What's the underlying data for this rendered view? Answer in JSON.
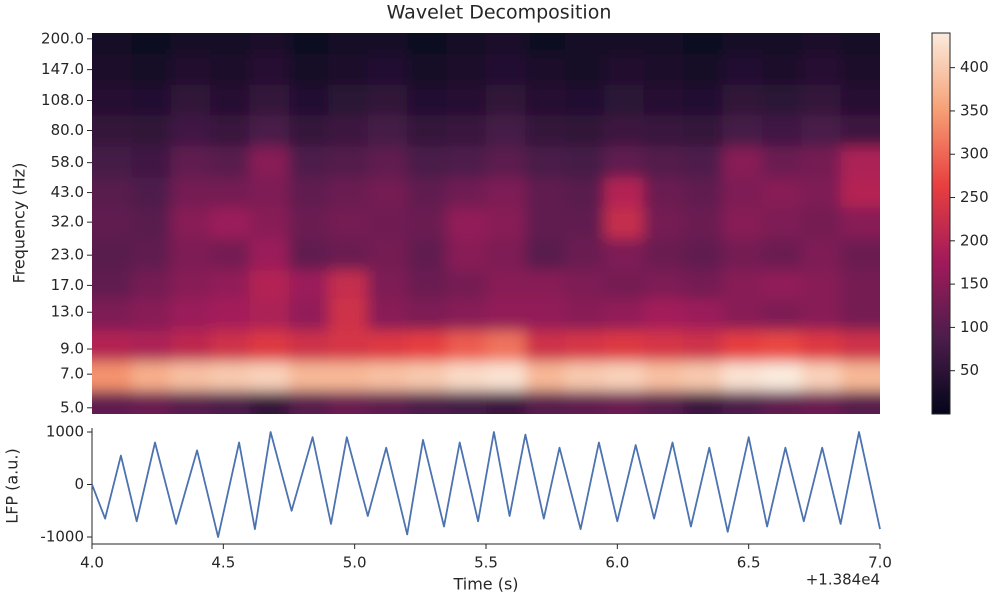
{
  "chart_data": [
    {
      "type": "heatmap",
      "title": "Wavelet Decomposition",
      "ylabel": "Frequency (Hz)",
      "colormap": "rocket",
      "ylog": true,
      "ylim": [
        4.7,
        212
      ],
      "yticks": [
        {
          "value": 200,
          "label": "200.0"
        },
        {
          "value": 147,
          "label": "147.0"
        },
        {
          "value": 108,
          "label": "108.0"
        },
        {
          "value": 80,
          "label": "80.0"
        },
        {
          "value": 58,
          "label": "58.0"
        },
        {
          "value": 43,
          "label": "43.0"
        },
        {
          "value": 32,
          "label": "32.0"
        },
        {
          "value": 23,
          "label": "23.0"
        },
        {
          "value": 17,
          "label": "17.0"
        },
        {
          "value": 13,
          "label": "13.0"
        },
        {
          "value": 9,
          "label": "9.0"
        },
        {
          "value": 7,
          "label": "7.0"
        },
        {
          "value": 5,
          "label": "5.0"
        }
      ],
      "x_edges": [
        4.0,
        4.15,
        4.3,
        4.45,
        4.6,
        4.75,
        4.9,
        5.05,
        5.2,
        5.35,
        5.5,
        5.65,
        5.8,
        5.95,
        6.1,
        6.25,
        6.4,
        6.55,
        6.7,
        6.85,
        7.0
      ],
      "y": [
        200,
        147,
        108,
        80,
        58,
        43,
        32,
        23,
        17,
        13,
        9,
        7,
        5
      ],
      "z": [
        [
          20,
          15,
          25,
          20,
          30,
          15,
          20,
          25,
          15,
          20,
          30,
          15,
          20,
          25,
          20,
          15,
          25,
          20,
          30,
          20
        ],
        [
          30,
          25,
          35,
          30,
          45,
          25,
          30,
          40,
          25,
          30,
          40,
          30,
          25,
          35,
          30,
          25,
          40,
          30,
          45,
          30
        ],
        [
          45,
          40,
          55,
          45,
          60,
          40,
          50,
          55,
          40,
          45,
          55,
          45,
          40,
          50,
          45,
          40,
          55,
          50,
          60,
          45
        ],
        [
          60,
          55,
          75,
          65,
          85,
          60,
          70,
          80,
          60,
          65,
          80,
          60,
          55,
          70,
          65,
          60,
          80,
          75,
          85,
          70
        ],
        [
          80,
          75,
          110,
          100,
          150,
          90,
          95,
          110,
          85,
          90,
          105,
          85,
          80,
          110,
          95,
          90,
          150,
          120,
          130,
          190
        ],
        [
          100,
          90,
          130,
          130,
          140,
          110,
          120,
          130,
          110,
          125,
          140,
          110,
          100,
          200,
          120,
          110,
          140,
          150,
          140,
          200
        ],
        [
          110,
          100,
          150,
          170,
          150,
          120,
          130,
          125,
          120,
          160,
          150,
          110,
          110,
          220,
          130,
          120,
          150,
          140,
          130,
          150
        ],
        [
          100,
          110,
          140,
          130,
          170,
          110,
          120,
          130,
          110,
          150,
          140,
          100,
          120,
          140,
          120,
          110,
          130,
          120,
          140,
          120
        ],
        [
          110,
          130,
          150,
          160,
          200,
          170,
          220,
          140,
          120,
          130,
          150,
          150,
          140,
          130,
          140,
          130,
          150,
          160,
          150,
          130
        ],
        [
          140,
          150,
          170,
          180,
          190,
          160,
          230,
          150,
          140,
          150,
          160,
          160,
          150,
          160,
          180,
          170,
          150,
          140,
          150,
          130
        ],
        [
          200,
          190,
          210,
          230,
          250,
          230,
          240,
          250,
          260,
          290,
          310,
          230,
          240,
          250,
          240,
          230,
          260,
          270,
          250,
          230
        ],
        [
          340,
          370,
          390,
          400,
          410,
          380,
          380,
          390,
          400,
          420,
          430,
          380,
          400,
          410,
          390,
          400,
          430,
          440,
          410,
          380
        ],
        [
          110,
          120,
          100,
          90,
          60,
          100,
          120,
          110,
          90,
          80,
          70,
          100,
          110,
          120,
          100,
          70,
          90,
          110,
          120,
          100
        ]
      ],
      "clim": [
        0,
        440
      ],
      "cticks": [
        50,
        100,
        150,
        200,
        250,
        300,
        350,
        400
      ]
    },
    {
      "type": "line",
      "xlabel": "Time (s)",
      "ylabel": "LFP (a.u.)",
      "x_offset_label": "+1.384e4",
      "xlim": [
        4.0,
        7.0
      ],
      "xticks": [
        {
          "value": 4.0,
          "label": "4.0"
        },
        {
          "value": 4.5,
          "label": "4.5"
        },
        {
          "value": 5.0,
          "label": "5.0"
        },
        {
          "value": 5.5,
          "label": "5.5"
        },
        {
          "value": 6.0,
          "label": "6.0"
        },
        {
          "value": 6.5,
          "label": "6.5"
        },
        {
          "value": 7.0,
          "label": "7.0"
        }
      ],
      "ylim": [
        -1133,
        1076
      ],
      "yticks": [
        -1000,
        0,
        1000
      ],
      "x": [
        4.0,
        4.05,
        4.11,
        4.17,
        4.24,
        4.32,
        4.4,
        4.48,
        4.56,
        4.62,
        4.68,
        4.76,
        4.84,
        4.91,
        4.97,
        5.05,
        5.12,
        5.2,
        5.26,
        5.34,
        5.4,
        5.47,
        5.53,
        5.59,
        5.65,
        5.72,
        5.78,
        5.86,
        5.93,
        6.0,
        6.07,
        6.14,
        6.21,
        6.28,
        6.35,
        6.42,
        6.5,
        6.57,
        6.64,
        6.71,
        6.78,
        6.85,
        6.92,
        7.0
      ],
      "series": [
        {
          "color": "#4c72b0",
          "values": [
            0,
            -650,
            550,
            -700,
            800,
            -750,
            650,
            -1000,
            800,
            -850,
            1000,
            -500,
            900,
            -750,
            900,
            -600,
            700,
            -950,
            850,
            -800,
            800,
            -700,
            1000,
            -600,
            950,
            -650,
            700,
            -850,
            800,
            -700,
            750,
            -650,
            800,
            -800,
            700,
            -900,
            900,
            -800,
            700,
            -700,
            700,
            -750,
            1000,
            -850
          ]
        }
      ]
    }
  ]
}
